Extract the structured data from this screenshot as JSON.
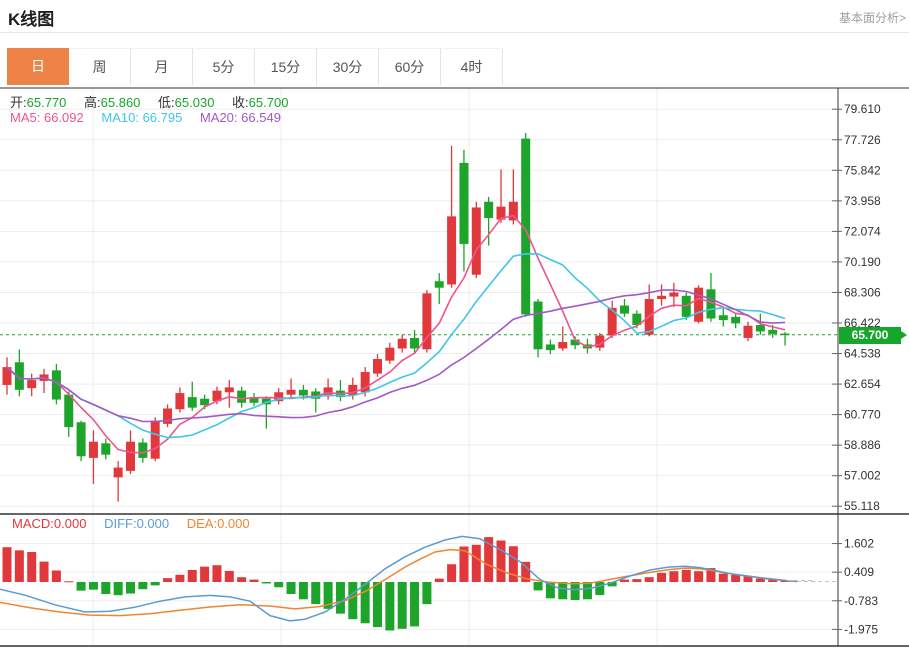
{
  "header": {
    "title": "K线图",
    "link": "基本面分析>"
  },
  "tabs": {
    "items": [
      "日",
      "周",
      "月",
      "5分",
      "15分",
      "30分",
      "60分",
      "4时"
    ],
    "active_index": 0
  },
  "ohlc": {
    "open_label": "开:",
    "open": "65.770",
    "high_label": "高:",
    "high": "65.860",
    "low_label": "低:",
    "low": "65.030",
    "close_label": "收:",
    "close": "65.700"
  },
  "ma": {
    "ma5_label": "MA5:",
    "ma5": "66.092",
    "ma10_label": "MA10:",
    "ma10": "66.795",
    "ma20_label": "MA20:",
    "ma20": "66.549"
  },
  "macd_info": {
    "macd_label": "MACD:",
    "macd": "0.000",
    "diff_label": "DIFF:",
    "diff": "0.000",
    "dea_label": "DEA:",
    "dea": "0.000"
  },
  "price_tag": "65.700",
  "colors": {
    "up": "#e1383c",
    "down": "#1da52b",
    "price_line": "#17a62c",
    "ma5": "#f0558c",
    "ma10": "#3ec7e8",
    "ma20": "#a259c4",
    "diff": "#5b9bd5",
    "dea": "#ef8532",
    "macd_text": "#e1383c",
    "grid": "#ededed",
    "border": "#333333",
    "axis_text": "#333333",
    "tab_active_bg": "#ee8348"
  },
  "chart_data": [
    {
      "type": "candlestick",
      "title": "K线图 main panel",
      "y_axis_labels": [
        "79.610",
        "77.726",
        "75.842",
        "73.958",
        "72.074",
        "70.190",
        "68.306",
        "66.422",
        "64.538",
        "62.654",
        "60.770",
        "58.886",
        "57.002",
        "55.118"
      ],
      "y_axis_values": [
        79.61,
        77.726,
        75.842,
        73.958,
        72.074,
        70.19,
        68.306,
        66.422,
        64.538,
        62.654,
        60.77,
        58.886,
        57.002,
        55.118
      ],
      "current_price": 65.7,
      "ma_periods": [
        5,
        10,
        20
      ],
      "candles_ohlc": [
        [
          62.6,
          64.3,
          62.0,
          63.7
        ],
        [
          64.0,
          64.8,
          61.9,
          62.3
        ],
        [
          62.4,
          63.3,
          61.9,
          62.9
        ],
        [
          62.85,
          63.6,
          62.1,
          63.25
        ],
        [
          63.5,
          63.9,
          61.4,
          61.7
        ],
        [
          62.0,
          62.2,
          59.4,
          60.0
        ],
        [
          60.3,
          60.4,
          57.9,
          58.2
        ],
        [
          58.1,
          59.8,
          56.5,
          59.1
        ],
        [
          59.0,
          59.3,
          58.0,
          58.3
        ],
        [
          56.9,
          57.9,
          55.4,
          57.5
        ],
        [
          57.3,
          59.8,
          57.1,
          59.1
        ],
        [
          59.05,
          59.3,
          57.8,
          58.1
        ],
        [
          58.05,
          60.6,
          57.9,
          60.4
        ],
        [
          60.2,
          61.4,
          60.0,
          61.15
        ],
        [
          61.1,
          62.45,
          60.9,
          62.1
        ],
        [
          61.85,
          62.8,
          61.0,
          61.2
        ],
        [
          61.75,
          62.0,
          61.1,
          61.35
        ],
        [
          61.6,
          62.5,
          61.4,
          62.25
        ],
        [
          62.15,
          62.9,
          61.2,
          62.45
        ],
        [
          62.25,
          62.5,
          61.2,
          61.5
        ],
        [
          61.85,
          62.1,
          61.3,
          61.5
        ],
        [
          61.75,
          61.9,
          59.9,
          61.4
        ],
        [
          61.6,
          62.4,
          61.4,
          62.15
        ],
        [
          62.0,
          63.0,
          61.8,
          62.3
        ],
        [
          62.3,
          62.6,
          61.7,
          61.95
        ],
        [
          62.2,
          62.4,
          60.9,
          61.75
        ],
        [
          61.9,
          63.0,
          61.7,
          62.45
        ],
        [
          62.25,
          62.9,
          61.6,
          61.85
        ],
        [
          61.95,
          63.05,
          61.7,
          62.6
        ],
        [
          62.15,
          63.7,
          61.9,
          63.4
        ],
        [
          63.3,
          64.5,
          63.1,
          64.2
        ],
        [
          64.1,
          65.2,
          63.9,
          64.9
        ],
        [
          64.85,
          65.7,
          64.6,
          65.45
        ],
        [
          65.5,
          66.0,
          64.5,
          64.85
        ],
        [
          64.8,
          68.45,
          64.6,
          68.25
        ],
        [
          69.0,
          69.5,
          67.6,
          68.6
        ],
        [
          68.8,
          77.35,
          68.6,
          73.0
        ],
        [
          76.3,
          77.1,
          69.6,
          71.3
        ],
        [
          69.4,
          73.9,
          69.2,
          73.55
        ],
        [
          73.9,
          74.2,
          71.2,
          72.9
        ],
        [
          72.8,
          75.9,
          72.6,
          73.6
        ],
        [
          72.75,
          75.9,
          72.5,
          73.9
        ],
        [
          77.8,
          78.15,
          66.8,
          66.95
        ],
        [
          67.75,
          67.9,
          64.3,
          64.8
        ],
        [
          65.1,
          65.4,
          64.5,
          64.75
        ],
        [
          64.85,
          66.2,
          64.7,
          65.25
        ],
        [
          65.4,
          65.6,
          64.8,
          65.05
        ],
        [
          65.1,
          65.45,
          64.55,
          64.85
        ],
        [
          64.9,
          65.8,
          64.7,
          65.65
        ],
        [
          65.65,
          67.8,
          65.5,
          67.35
        ],
        [
          67.5,
          67.9,
          66.8,
          67.0
        ],
        [
          67.0,
          67.2,
          66.1,
          66.3
        ],
        [
          65.7,
          68.8,
          65.6,
          67.9
        ],
        [
          67.9,
          68.8,
          67.5,
          68.1
        ],
        [
          68.05,
          68.9,
          67.4,
          68.3
        ],
        [
          68.1,
          68.3,
          66.6,
          66.8
        ],
        [
          66.5,
          68.75,
          66.4,
          68.6
        ],
        [
          68.5,
          69.5,
          66.5,
          66.7
        ],
        [
          66.9,
          67.4,
          66.2,
          66.6
        ],
        [
          66.8,
          67.0,
          66.1,
          66.4
        ],
        [
          65.5,
          66.5,
          65.3,
          66.25
        ],
        [
          66.3,
          67.0,
          65.7,
          65.9
        ],
        [
          66.0,
          66.3,
          65.5,
          65.75
        ],
        [
          65.77,
          65.86,
          65.03,
          65.7
        ]
      ]
    },
    {
      "type": "bar",
      "title": "MACD panel",
      "y_axis_labels": [
        "1.602",
        "0.409",
        "-0.783",
        "-1.975"
      ],
      "y_axis_values": [
        1.602,
        0.409,
        -0.783,
        -1.975
      ],
      "histogram": [
        1.45,
        1.32,
        1.25,
        0.85,
        0.48,
        0.03,
        -0.36,
        -0.32,
        -0.5,
        -0.55,
        -0.48,
        -0.3,
        -0.14,
        0.16,
        0.3,
        0.5,
        0.64,
        0.7,
        0.46,
        0.2,
        0.1,
        -0.06,
        -0.22,
        -0.5,
        -0.72,
        -0.92,
        -1.12,
        -1.32,
        -1.55,
        -1.72,
        -1.88,
        -2.02,
        -1.95,
        -1.85,
        -0.92,
        0.14,
        0.74,
        1.48,
        1.55,
        1.87,
        1.73,
        1.49,
        0.84,
        -0.35,
        -0.68,
        -0.72,
        -0.75,
        -0.72,
        -0.54,
        -0.18,
        0.1,
        0.12,
        0.2,
        0.38,
        0.45,
        0.5,
        0.45,
        0.58,
        0.35,
        0.3,
        0.25,
        0.15,
        0.1,
        0.05
      ],
      "diff_points": [
        [
          0,
          -0.3
        ],
        [
          25,
          -0.55
        ],
        [
          55,
          -0.95
        ],
        [
          85,
          -1.25
        ],
        [
          110,
          -1.22
        ],
        [
          135,
          -1.05
        ],
        [
          160,
          -0.8
        ],
        [
          185,
          -0.62
        ],
        [
          210,
          -0.56
        ],
        [
          230,
          -0.62
        ],
        [
          250,
          -0.8
        ],
        [
          270,
          -1.4
        ],
        [
          290,
          -1.62
        ],
        [
          305,
          -1.55
        ],
        [
          325,
          -1.25
        ],
        [
          345,
          -0.72
        ],
        [
          365,
          -0.1
        ],
        [
          385,
          0.55
        ],
        [
          405,
          1.05
        ],
        [
          425,
          1.45
        ],
        [
          445,
          1.75
        ],
        [
          462,
          1.9
        ],
        [
          480,
          1.8
        ],
        [
          500,
          1.35
        ],
        [
          520,
          0.85
        ],
        [
          540,
          0.1
        ],
        [
          558,
          -0.25
        ],
        [
          575,
          -0.32
        ],
        [
          592,
          -0.25
        ],
        [
          610,
          -0.05
        ],
        [
          630,
          0.25
        ],
        [
          650,
          0.5
        ],
        [
          668,
          0.62
        ],
        [
          685,
          0.66
        ],
        [
          700,
          0.6
        ],
        [
          715,
          0.48
        ],
        [
          730,
          0.35
        ],
        [
          748,
          0.25
        ],
        [
          765,
          0.14
        ],
        [
          782,
          0.07
        ],
        [
          797,
          0.02
        ]
      ],
      "dea_points": [
        [
          0,
          -0.85
        ],
        [
          30,
          -1.07
        ],
        [
          60,
          -1.25
        ],
        [
          90,
          -1.38
        ],
        [
          120,
          -1.4
        ],
        [
          150,
          -1.32
        ],
        [
          180,
          -1.18
        ],
        [
          210,
          -1.04
        ],
        [
          240,
          -0.95
        ],
        [
          270,
          -1.0
        ],
        [
          295,
          -1.12
        ],
        [
          320,
          -1.02
        ],
        [
          345,
          -0.78
        ],
        [
          365,
          -0.4
        ],
        [
          385,
          0.1
        ],
        [
          405,
          0.62
        ],
        [
          420,
          0.95
        ],
        [
          435,
          1.25
        ],
        [
          450,
          1.35
        ],
        [
          465,
          1.3
        ],
        [
          487,
          0.73
        ],
        [
          507,
          0.38
        ],
        [
          527,
          0.13
        ],
        [
          547,
          0.0
        ],
        [
          570,
          -0.07
        ],
        [
          590,
          -0.05
        ],
        [
          613,
          0.13
        ],
        [
          633,
          0.28
        ],
        [
          650,
          0.4
        ],
        [
          670,
          0.52
        ],
        [
          685,
          0.58
        ],
        [
          700,
          0.55
        ],
        [
          720,
          0.42
        ],
        [
          740,
          0.28
        ],
        [
          763,
          0.17
        ],
        [
          787,
          0.06
        ]
      ]
    }
  ]
}
